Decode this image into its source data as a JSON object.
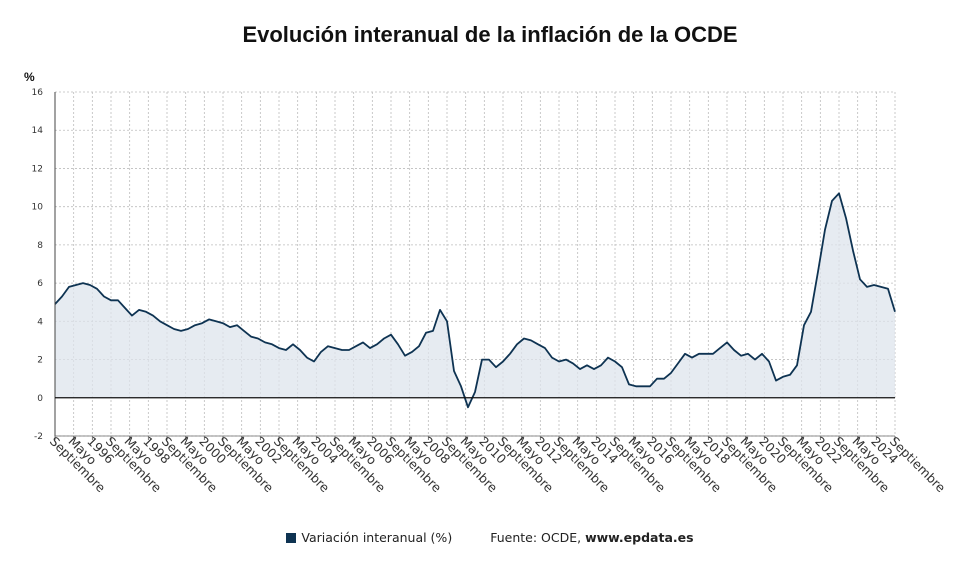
{
  "title": "Evolución interanual de la inflación de la OCDE",
  "legend": {
    "series_label": "Variación interanual (%)",
    "source_prefix": "Fuente: OCDE,",
    "source_site": "www.epdata.es"
  },
  "colors": {
    "line": "#0e3352",
    "area": "#dde4ec",
    "grid": "#bdbdbd",
    "zero": "#111111"
  },
  "chart_data": {
    "type": "area",
    "ylabel": "%",
    "ylim": [
      -2,
      16
    ],
    "yticks": [
      -2,
      0,
      2,
      4,
      6,
      8,
      10,
      12,
      14,
      16
    ],
    "grid": true,
    "x_tick_labels": [
      "Septiembre",
      "Mayo",
      "1996",
      "Septiembre",
      "Mayo",
      "1998",
      "Septiembre",
      "Mayo",
      "2000",
      "Septiembre",
      "Mayo",
      "2002",
      "Septiembre",
      "Mayo",
      "2004",
      "Septiembre",
      "Mayo",
      "2006",
      "Septiembre",
      "Mayo",
      "2008",
      "Septiembre",
      "Mayo",
      "2010",
      "Septiembre",
      "Mayo",
      "2012",
      "Septiembre",
      "Mayo",
      "2014",
      "Septiembre",
      "Mayo",
      "2016",
      "Septiembre",
      "Mayo",
      "2018",
      "Septiembre",
      "Mayo",
      "2020",
      "Septiembre",
      "Mayo",
      "2022",
      "Septiembre",
      "Mayo",
      "2024",
      "Septiembre"
    ],
    "series": [
      {
        "name": "Variación interanual (%)",
        "x": [
          "1994-09",
          "1994-12",
          "1995-03",
          "1995-06",
          "1995-09",
          "1995-12",
          "1996-03",
          "1996-06",
          "1996-09",
          "1996-12",
          "1997-03",
          "1997-06",
          "1997-09",
          "1997-12",
          "1998-03",
          "1998-06",
          "1998-09",
          "1998-12",
          "1999-03",
          "1999-06",
          "1999-09",
          "1999-12",
          "2000-03",
          "2000-06",
          "2000-09",
          "2000-12",
          "2001-03",
          "2001-06",
          "2001-09",
          "2001-12",
          "2002-03",
          "2002-06",
          "2002-09",
          "2002-12",
          "2003-03",
          "2003-06",
          "2003-09",
          "2003-12",
          "2004-03",
          "2004-06",
          "2004-09",
          "2004-12",
          "2005-03",
          "2005-06",
          "2005-09",
          "2005-12",
          "2006-03",
          "2006-06",
          "2006-09",
          "2006-12",
          "2007-03",
          "2007-06",
          "2007-09",
          "2007-12",
          "2008-03",
          "2008-06",
          "2008-09",
          "2008-12",
          "2009-03",
          "2009-06",
          "2009-09",
          "2009-12",
          "2010-03",
          "2010-06",
          "2010-09",
          "2010-12",
          "2011-03",
          "2011-06",
          "2011-09",
          "2011-12",
          "2012-03",
          "2012-06",
          "2012-09",
          "2012-12",
          "2013-03",
          "2013-06",
          "2013-09",
          "2013-12",
          "2014-03",
          "2014-06",
          "2014-09",
          "2014-12",
          "2015-03",
          "2015-06",
          "2015-09",
          "2015-12",
          "2016-03",
          "2016-06",
          "2016-09",
          "2016-12",
          "2017-03",
          "2017-06",
          "2017-09",
          "2017-12",
          "2018-03",
          "2018-06",
          "2018-09",
          "2018-12",
          "2019-03",
          "2019-06",
          "2019-09",
          "2019-12",
          "2020-03",
          "2020-06",
          "2020-09",
          "2020-12",
          "2021-03",
          "2021-06",
          "2021-09",
          "2021-12",
          "2022-03",
          "2022-06",
          "2022-09",
          "2022-12",
          "2023-03",
          "2023-06",
          "2023-09",
          "2023-12",
          "2024-03",
          "2024-06",
          "2024-09"
        ],
        "values": [
          4.9,
          5.3,
          5.8,
          5.9,
          6.0,
          5.9,
          5.7,
          5.3,
          5.1,
          5.1,
          4.7,
          4.3,
          4.6,
          4.5,
          4.3,
          4.0,
          3.8,
          3.6,
          3.5,
          3.6,
          3.8,
          3.9,
          4.1,
          4.0,
          3.9,
          3.7,
          3.8,
          3.5,
          3.2,
          3.1,
          2.9,
          2.8,
          2.6,
          2.5,
          2.8,
          2.5,
          2.1,
          1.9,
          2.4,
          2.7,
          2.6,
          2.5,
          2.5,
          2.7,
          2.9,
          2.6,
          2.8,
          3.1,
          3.3,
          2.8,
          2.2,
          2.4,
          2.7,
          3.4,
          3.5,
          4.6,
          4.0,
          1.4,
          0.6,
          -0.5,
          0.3,
          2.0,
          2.0,
          1.6,
          1.9,
          2.3,
          2.8,
          3.1,
          3.0,
          2.8,
          2.6,
          2.1,
          1.9,
          2.0,
          1.8,
          1.5,
          1.7,
          1.5,
          1.7,
          2.1,
          1.9,
          1.6,
          0.7,
          0.6,
          0.6,
          0.6,
          1.0,
          1.0,
          1.3,
          1.8,
          2.3,
          2.1,
          2.3,
          2.3,
          2.3,
          2.6,
          2.9,
          2.5,
          2.2,
          2.3,
          2.0,
          2.3,
          1.9,
          0.9,
          1.1,
          1.2,
          1.7,
          3.8,
          4.5,
          6.6,
          8.8,
          10.3,
          10.7,
          9.4,
          7.7,
          6.2,
          5.8,
          5.9,
          5.8,
          5.7,
          4.5
        ]
      }
    ]
  }
}
